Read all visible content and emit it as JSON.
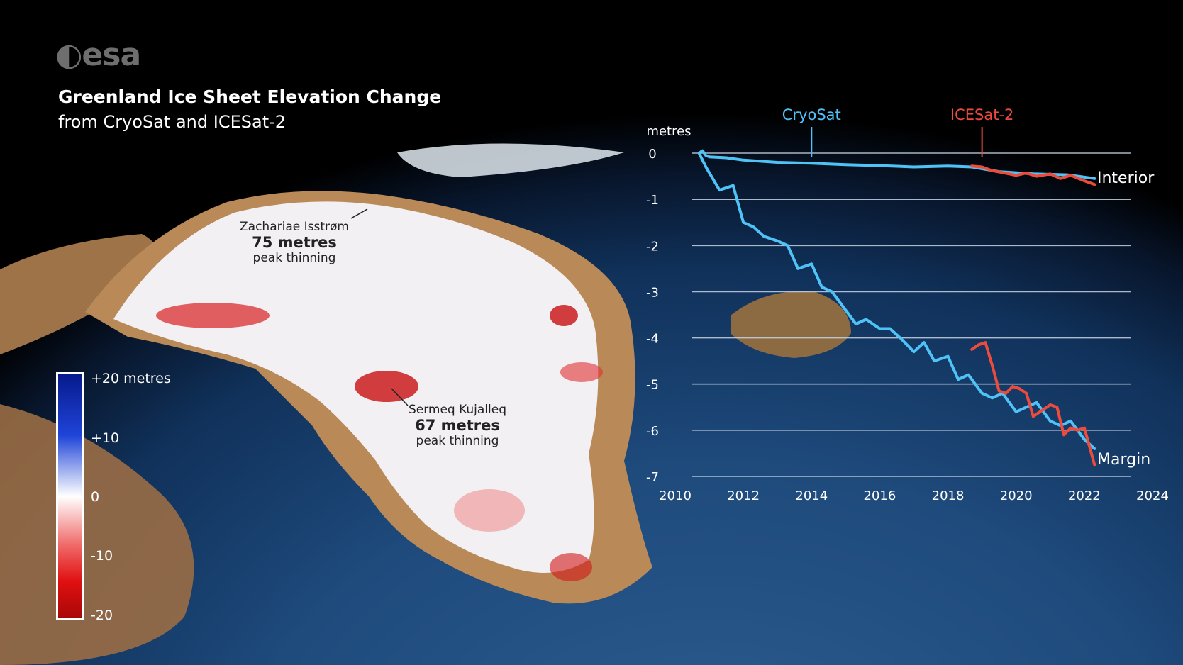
{
  "logo": {
    "text": "esa"
  },
  "header": {
    "title": "Greenland Ice Sheet Elevation Change",
    "subtitle": "from CryoSat and ICESat-2"
  },
  "map_annotations": [
    {
      "name": "Zachariae Isstrøm",
      "value": "75 metres",
      "note": "peak thinning"
    },
    {
      "name": "Sermeq Kujalleq",
      "value": "67 metres",
      "note": "peak thinning"
    }
  ],
  "legend": {
    "ticks": [
      "+20 metres",
      "+10",
      "0",
      "-10",
      "-20"
    ],
    "colors": {
      "high": "#071a8c",
      "mid": "#ffffff",
      "low": "#a80808"
    }
  },
  "chart_data": {
    "type": "line",
    "ylabel": "metres",
    "xlim": [
      2010,
      2024
    ],
    "ylim": [
      -7,
      0
    ],
    "x_ticks": [
      2010,
      2012,
      2014,
      2016,
      2018,
      2020,
      2022,
      2024
    ],
    "y_ticks": [
      0,
      -1,
      -2,
      -3,
      -4,
      -5,
      -6,
      -7
    ],
    "grid": true,
    "series_labels": [
      {
        "name": "CryoSat",
        "color": "#4fc3f7",
        "x": 2014
      },
      {
        "name": "ICESat-2",
        "color": "#ef4b3c",
        "x": 2019
      }
    ],
    "end_labels": [
      "Interior",
      "Margin"
    ],
    "series": [
      {
        "name": "CryoSat",
        "group": "Interior",
        "color": "#4fc3f7",
        "x": [
          2010.7,
          2010.8,
          2010.9,
          2011.0,
          2011.5,
          2012.0,
          2013.0,
          2014.0,
          2015.0,
          2016.0,
          2017.0,
          2018.0,
          2018.7,
          2019.5,
          2020.5,
          2021.5,
          2022.3
        ],
        "y": [
          0.0,
          0.05,
          -0.05,
          -0.08,
          -0.1,
          -0.15,
          -0.2,
          -0.22,
          -0.25,
          -0.27,
          -0.3,
          -0.28,
          -0.3,
          -0.4,
          -0.45,
          -0.47,
          -0.55
        ]
      },
      {
        "name": "ICESat-2",
        "group": "Interior",
        "color": "#ef4b3c",
        "x": [
          2018.7,
          2019.0,
          2019.3,
          2019.6,
          2020.0,
          2020.3,
          2020.6,
          2021.0,
          2021.3,
          2021.6,
          2022.0,
          2022.3
        ],
        "y": [
          -0.28,
          -0.3,
          -0.38,
          -0.42,
          -0.48,
          -0.43,
          -0.5,
          -0.45,
          -0.55,
          -0.48,
          -0.6,
          -0.68
        ]
      },
      {
        "name": "CryoSat",
        "group": "Margin",
        "color": "#4fc3f7",
        "x": [
          2010.7,
          2010.9,
          2011.3,
          2011.7,
          2012.0,
          2012.3,
          2012.6,
          2013.0,
          2013.3,
          2013.6,
          2014.0,
          2014.3,
          2014.6,
          2015.0,
          2015.3,
          2015.6,
          2016.0,
          2016.3,
          2016.6,
          2017.0,
          2017.3,
          2017.6,
          2018.0,
          2018.3,
          2018.6,
          2019.0,
          2019.3,
          2019.6,
          2020.0,
          2020.3,
          2020.6,
          2021.0,
          2021.3,
          2021.6,
          2022.0,
          2022.3
        ],
        "y": [
          0.0,
          -0.3,
          -0.8,
          -0.7,
          -1.5,
          -1.6,
          -1.8,
          -1.9,
          -2.0,
          -2.5,
          -2.4,
          -2.9,
          -3.0,
          -3.4,
          -3.7,
          -3.6,
          -3.8,
          -3.8,
          -4.0,
          -4.3,
          -4.1,
          -4.5,
          -4.4,
          -4.9,
          -4.8,
          -5.2,
          -5.3,
          -5.2,
          -5.6,
          -5.5,
          -5.4,
          -5.8,
          -5.9,
          -5.8,
          -6.2,
          -6.4
        ]
      },
      {
        "name": "ICESat-2",
        "group": "Margin",
        "color": "#ef4b3c",
        "x": [
          2018.7,
          2018.9,
          2019.1,
          2019.3,
          2019.5,
          2019.7,
          2019.9,
          2020.1,
          2020.3,
          2020.5,
          2020.7,
          2021.0,
          2021.2,
          2021.4,
          2021.6,
          2021.8,
          2022.0,
          2022.3
        ],
        "y": [
          -4.25,
          -4.15,
          -4.1,
          -4.6,
          -5.15,
          -5.2,
          -5.05,
          -5.1,
          -5.2,
          -5.7,
          -5.6,
          -5.45,
          -5.5,
          -6.1,
          -5.95,
          -6.0,
          -5.95,
          -6.75
        ]
      }
    ]
  }
}
